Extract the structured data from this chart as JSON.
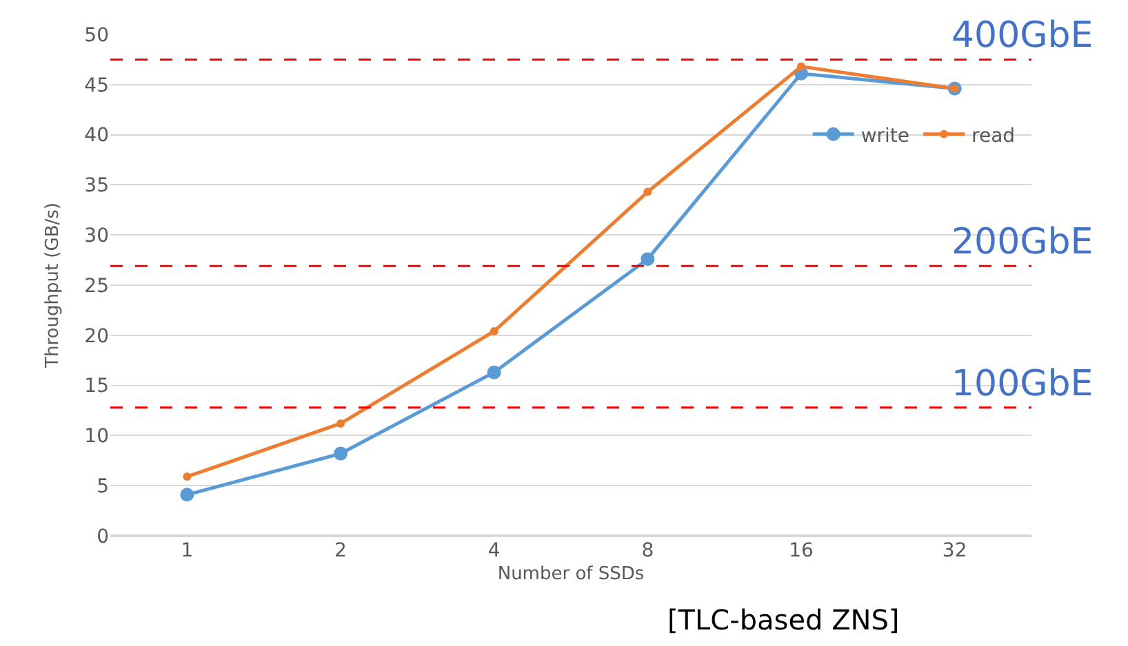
{
  "chart_data": {
    "type": "line",
    "xlabel": "Number of SSDs",
    "ylabel": "Throughput (GB/s)",
    "categories": [
      "1",
      "2",
      "4",
      "8",
      "16",
      "32"
    ],
    "series": [
      {
        "name": "write",
        "color": "#5b9bd5",
        "values": [
          4.1,
          8.2,
          16.3,
          27.6,
          46.1,
          44.6
        ]
      },
      {
        "name": "read",
        "color": "#ed7d31",
        "values": [
          5.9,
          11.2,
          20.4,
          34.3,
          46.8,
          44.6
        ]
      }
    ],
    "ylim": [
      0,
      50
    ],
    "yticks": [
      0,
      5,
      10,
      15,
      20,
      25,
      30,
      35,
      40,
      45,
      50
    ],
    "grid": "y",
    "legend": "right",
    "marker": "circle",
    "line_style": "solid",
    "ref_lines": [
      {
        "axis": "y",
        "value": 47.5,
        "label": "400GbE",
        "color": "#ff0000",
        "line_style": "dashed"
      },
      {
        "axis": "y",
        "value": 26.9,
        "label": "200GbE",
        "color": "#ff0000",
        "line_style": "dashed"
      },
      {
        "axis": "y",
        "value": 12.8,
        "label": "100GbE",
        "color": "#ff0000",
        "line_style": "dashed"
      }
    ],
    "annotations": [
      "[TLC-based ZNS]"
    ]
  }
}
